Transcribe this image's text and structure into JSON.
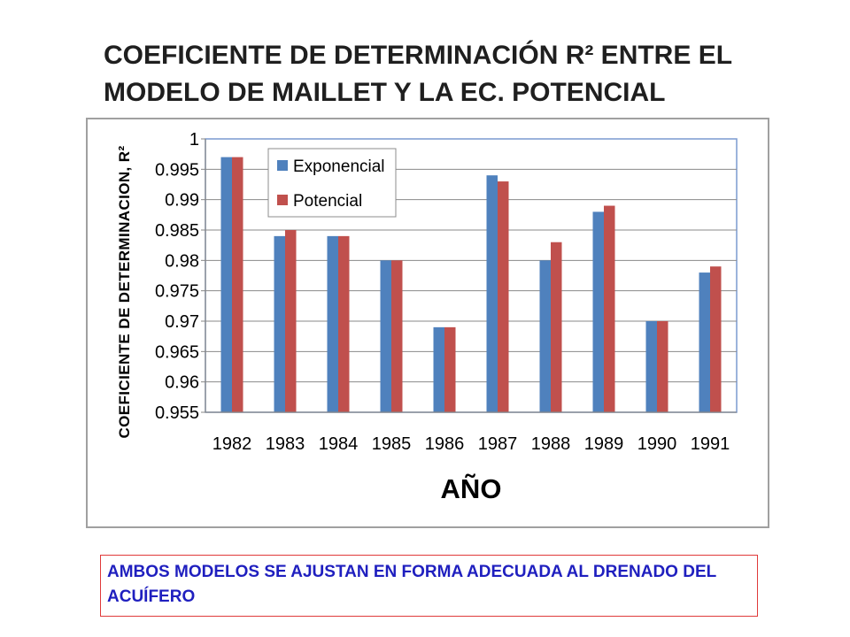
{
  "slide": {
    "title": "COEFICIENTE DE DETERMINACIÓN R² ENTRE EL MODELO DE MAILLET Y LA EC. POTENCIAL",
    "note": "AMBOS MODELOS SE AJUSTAN EN FORMA ADECUADA AL DRENADO DEL ACUÍFERO"
  },
  "colors": {
    "title_text": "#1f1f1f",
    "note_text": "#1f1fbf",
    "note_border": "#e03a3a",
    "chart_frame": "#a0a0a0"
  },
  "chart_data": {
    "type": "bar",
    "categories": [
      "1982",
      "1983",
      "1984",
      "1985",
      "1986",
      "1987",
      "1988",
      "1989",
      "1990",
      "1991"
    ],
    "series": [
      {
        "name": "Exponencial",
        "color": "#4f81bd",
        "values": [
          0.997,
          0.984,
          0.984,
          0.98,
          0.969,
          0.994,
          0.98,
          0.988,
          0.97,
          0.978
        ]
      },
      {
        "name": "Potencial",
        "color": "#c0504d",
        "values": [
          0.997,
          0.985,
          0.984,
          0.98,
          0.969,
          0.993,
          0.983,
          0.989,
          0.97,
          0.979
        ]
      }
    ],
    "xlabel": "AÑO",
    "ylabel": "COEFICIENTE DE DETERMINACION, R²",
    "ylim": [
      0.955,
      1
    ],
    "ytick_labels": [
      "0.955",
      "0.96",
      "0.965",
      "0.97",
      "0.975",
      "0.98",
      "0.985",
      "0.99",
      "0.995",
      "1"
    ],
    "grid": true,
    "legend": "top-left"
  }
}
